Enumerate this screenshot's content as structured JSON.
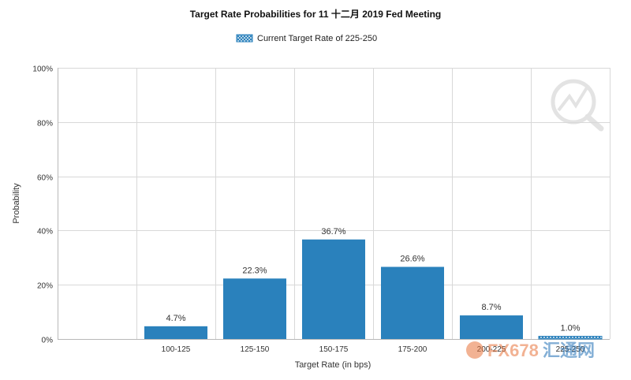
{
  "chart_data": {
    "type": "bar",
    "title": "Target Rate Probabilities for 11 十二月 2019 Fed Meeting",
    "xlabel": "Target Rate (in bps)",
    "ylabel": "Probability",
    "categories": [
      "100-125",
      "125-150",
      "150-175",
      "175-200",
      "200-225",
      "225-250"
    ],
    "values": [
      4.7,
      22.3,
      36.7,
      26.6,
      8.7,
      1.0
    ],
    "value_labels": [
      "4.7%",
      "22.3%",
      "36.7%",
      "26.6%",
      "8.7%",
      "1.0%"
    ],
    "current_category": "225-250",
    "ylim": [
      0,
      100
    ],
    "yticks": [
      0,
      20,
      40,
      60,
      80,
      100
    ],
    "ytick_labels": [
      "0%",
      "20%",
      "40%",
      "60%",
      "80%",
      "100%"
    ],
    "grid": true,
    "legend": {
      "position": "top-center",
      "entries": [
        "Current Target Rate of 225-250"
      ]
    },
    "colors": {
      "bar": "#2a81bc",
      "current_bar_pattern": "#2a81bc",
      "grid": "#d8d8d8"
    }
  },
  "watermark": {
    "text": "FX678",
    "suffix": "汇通网"
  }
}
